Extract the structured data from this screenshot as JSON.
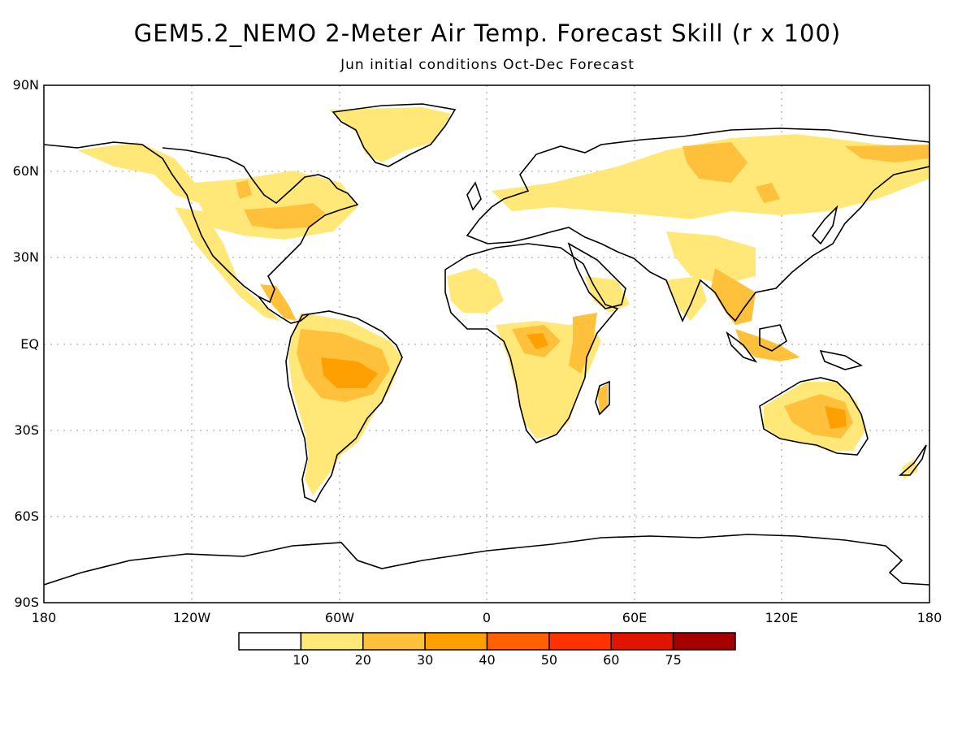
{
  "title": "GEM5.2_NEMO 2-Meter Air Temp. Forecast Skill (r x 100)",
  "subtitle": "Jun initial conditions  Oct-Dec Forecast",
  "lat_labels": [
    "90N",
    "60N",
    "30N",
    "EQ",
    "30S",
    "60S",
    "90S"
  ],
  "lon_labels": [
    "180",
    "120W",
    "60W",
    "0",
    "60E",
    "120E",
    "180"
  ],
  "colorbar": {
    "labels": [
      "10",
      "20",
      "30",
      "40",
      "50",
      "60",
      "75"
    ],
    "colors": [
      "#ffffff",
      "#ffe878",
      "#ffc03c",
      "#ffa000",
      "#ff6000",
      "#ff3200",
      "#e11400",
      "#a50000"
    ]
  },
  "land_color": "#ffffff",
  "coastline_color": "#000000",
  "grid_style": "dotted"
}
